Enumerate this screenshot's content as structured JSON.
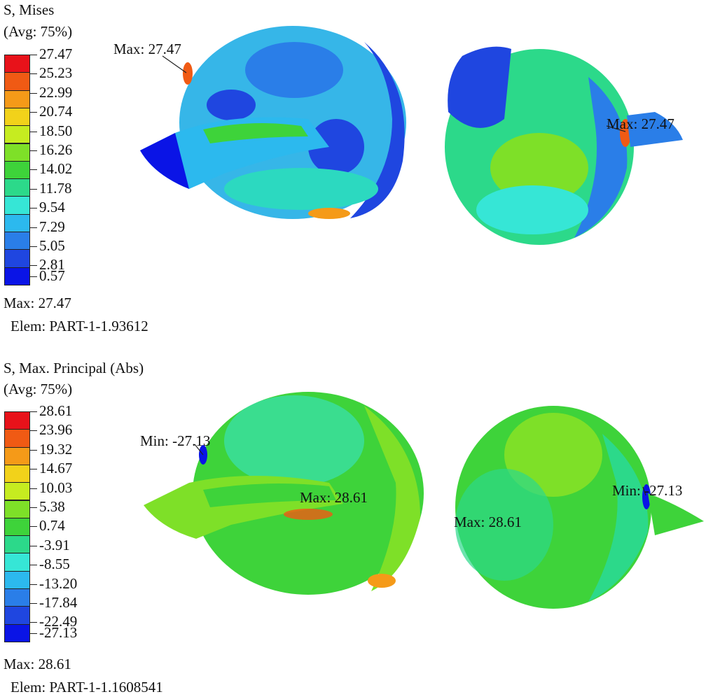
{
  "panels": [
    {
      "title": "S, Mises",
      "avg": "(Avg: 75%)",
      "legend_values": [
        "27.47",
        "25.23",
        "22.99",
        "20.74",
        "18.50",
        "16.26",
        "14.02",
        "11.78",
        "9.54",
        "7.29",
        "5.05",
        "2.81",
        "0.57"
      ],
      "legend_colors": [
        "#e8121a",
        "#f05a14",
        "#f59a18",
        "#f2d21a",
        "#c6ec20",
        "#7ee028",
        "#3ed33a",
        "#2cd98a",
        "#36e6d6",
        "#2cb9ee",
        "#2a7ee8",
        "#1f46e0",
        "#0a14e6"
      ],
      "summary_max": "Max: 27.47",
      "summary_elem": "Elem: PART-1-1.93612",
      "annotations": [
        "Max: 27.47",
        "Max: 27.47"
      ]
    },
    {
      "title": "S, Max. Principal (Abs)",
      "avg": "(Avg: 75%)",
      "legend_values": [
        "28.61",
        "23.96",
        "19.32",
        "14.67",
        "10.03",
        "5.38",
        "0.74",
        "-3.91",
        "-8.55",
        "-13.20",
        "-17.84",
        "-22.49",
        "-27.13"
      ],
      "legend_colors": [
        "#e8121a",
        "#f05a14",
        "#f59a18",
        "#f2d21a",
        "#c6ec20",
        "#7ee028",
        "#3ed33a",
        "#2cd98a",
        "#36e6d6",
        "#2cb9ee",
        "#2a7ee8",
        "#1f46e0",
        "#0a14e6"
      ],
      "summary_max": "Max: 28.61",
      "summary_elem": "Elem: PART-1-1.1608541",
      "annotations": [
        "Min: -27.13",
        "Max: 28.61",
        "Min: -27.13",
        "Max: 28.61"
      ]
    }
  ]
}
